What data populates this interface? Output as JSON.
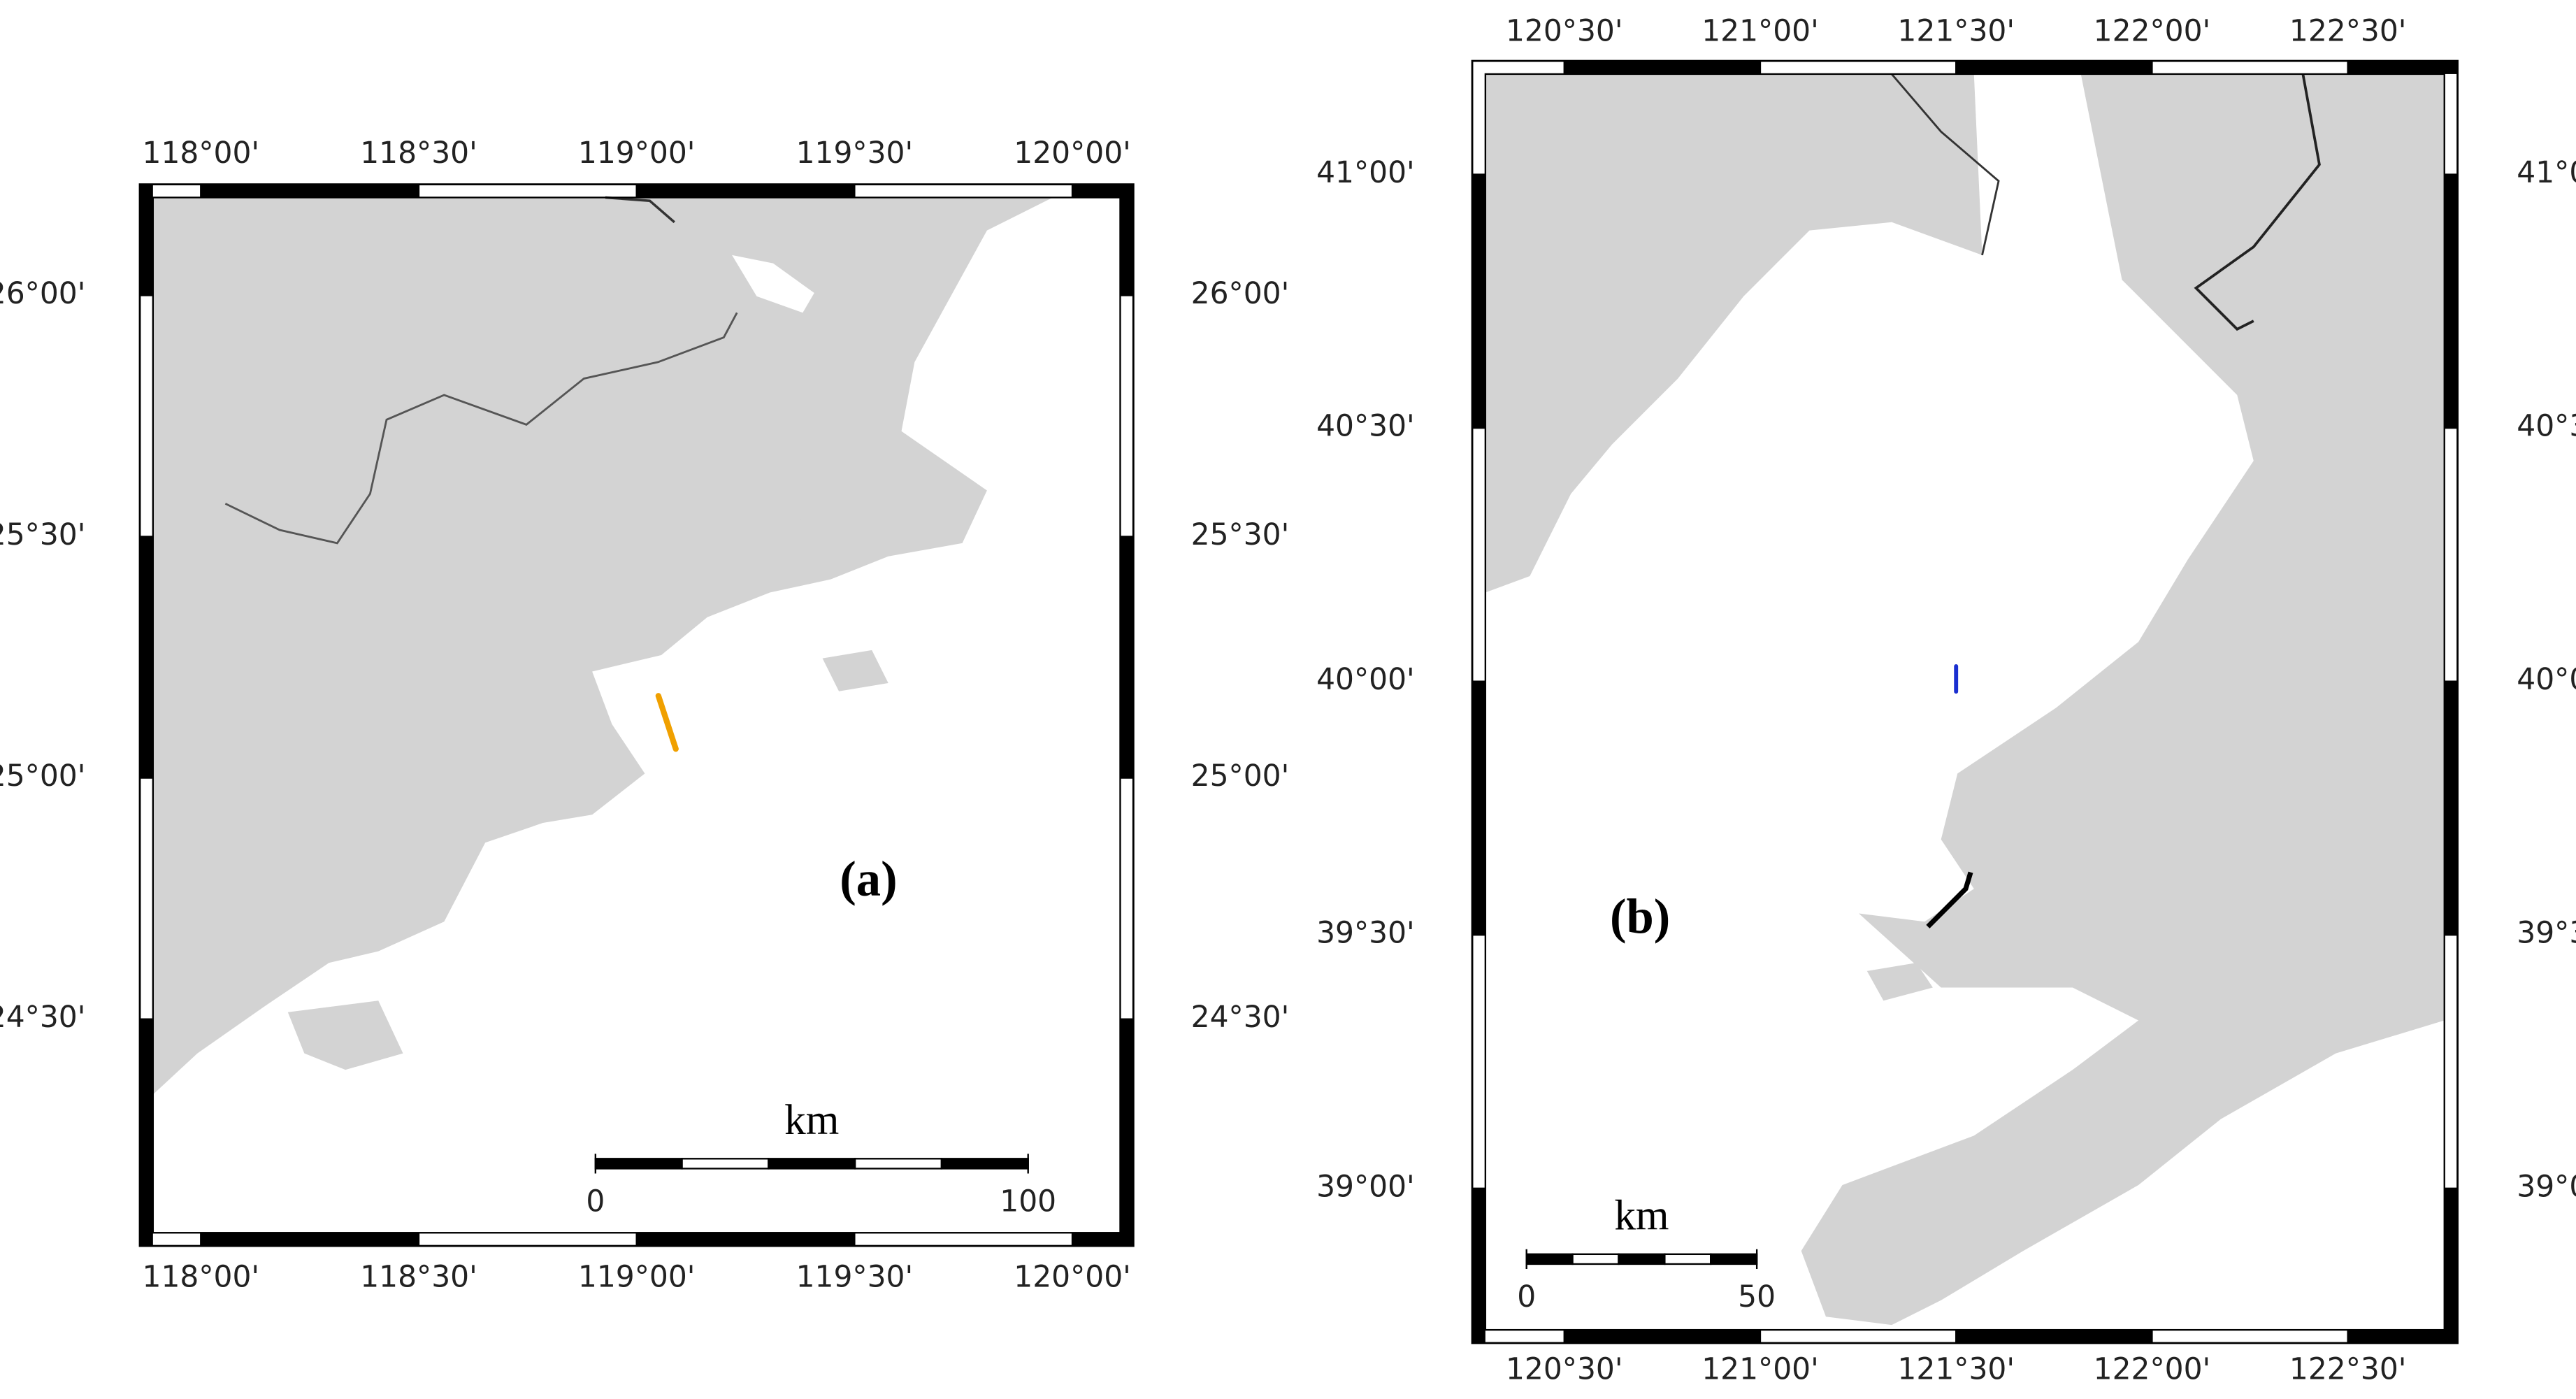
{
  "maps": [
    {
      "panel_label": "(a)",
      "xlim": [
        117.86,
        120.14
      ],
      "ylim": [
        24.03,
        26.23
      ],
      "xticks": [
        {
          "value": 118,
          "label": "118°00'"
        },
        {
          "value": 118.5,
          "label": "118°30'"
        },
        {
          "value": 119,
          "label": "119°00'"
        },
        {
          "value": 119.5,
          "label": "119°30'"
        },
        {
          "value": 120,
          "label": "120°00'"
        }
      ],
      "yticks": [
        {
          "value": 24.5,
          "label": "24°30'"
        },
        {
          "value": 25,
          "label": "25°00'"
        },
        {
          "value": 25.5,
          "label": "25°30'"
        },
        {
          "value": 26,
          "label": "26°00'"
        }
      ],
      "scale": {
        "unit": "km",
        "ticks": [
          0,
          100
        ]
      },
      "track_color": "#f0a000"
    },
    {
      "panel_label": "(b)",
      "xlim": [
        120.265,
        122.78
      ],
      "ylim": [
        38.695,
        41.224
      ],
      "xticks": [
        {
          "value": 120.5,
          "label": "120°30'"
        },
        {
          "value": 121,
          "label": "121°00'"
        },
        {
          "value": 121.5,
          "label": "121°30'"
        },
        {
          "value": 122,
          "label": "122°00'"
        },
        {
          "value": 122.5,
          "label": "122°30'"
        }
      ],
      "yticks": [
        {
          "value": 39,
          "label": "39°00'"
        },
        {
          "value": 39.5,
          "label": "39°30'"
        },
        {
          "value": 40,
          "label": "40°00'"
        },
        {
          "value": 40.5,
          "label": "40°30'"
        },
        {
          "value": 41,
          "label": "41°00'"
        }
      ],
      "scale": {
        "unit": "km",
        "ticks": [
          0,
          50
        ]
      },
      "track_color": "#1a2fd0"
    }
  ]
}
